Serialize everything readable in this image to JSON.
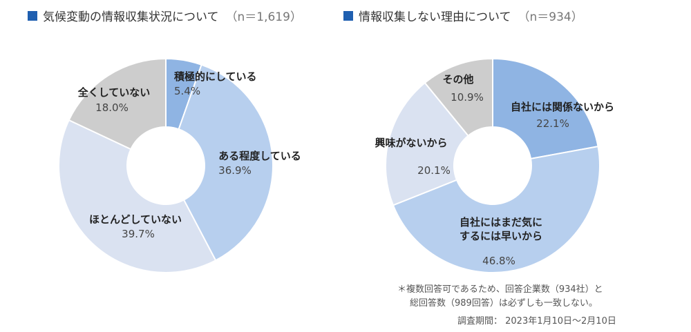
{
  "chart_data": [
    {
      "type": "pie",
      "title": "気候変動の情報収集状況について",
      "n_label": "（n＝1,619）",
      "slices": [
        {
          "label": "積極的にしている",
          "value": 5.4,
          "value_label": "5.4%",
          "color": "#8fb4e3"
        },
        {
          "label": "ある程度している",
          "value": 36.9,
          "value_label": "36.9%",
          "color": "#b7cfee"
        },
        {
          "label": "ほとんどしていない",
          "value": 39.7,
          "value_label": "39.7%",
          "color": "#dae2f1"
        },
        {
          "label": "全くしていない",
          "value": 18.0,
          "value_label": "18.0%",
          "color": "#cdcdcd"
        }
      ]
    },
    {
      "type": "pie",
      "title": "情報収集しない理由について",
      "n_label": "（n＝934）",
      "slices": [
        {
          "label": "自社には関係ないから",
          "value": 22.1,
          "value_label": "22.1%",
          "color": "#8fb4e3"
        },
        {
          "label": "自社にはまだ気にするには早いから",
          "value": 46.8,
          "value_label": "46.8%",
          "color": "#b7cfee"
        },
        {
          "label": "興味がないから",
          "value": 20.1,
          "value_label": "20.1%",
          "color": "#dae2f1"
        },
        {
          "label": "その他",
          "value": 10.9,
          "value_label": "10.9%",
          "color": "#cdcdcd"
        }
      ]
    }
  ],
  "notes": {
    "line1": "＊複数回答可であるため、回答企業数（934社）と",
    "line2": "総回答数（989回答）は必ずしも一致しない。",
    "survey_period": "調査期間： 2023年1月10日～2月10日"
  }
}
